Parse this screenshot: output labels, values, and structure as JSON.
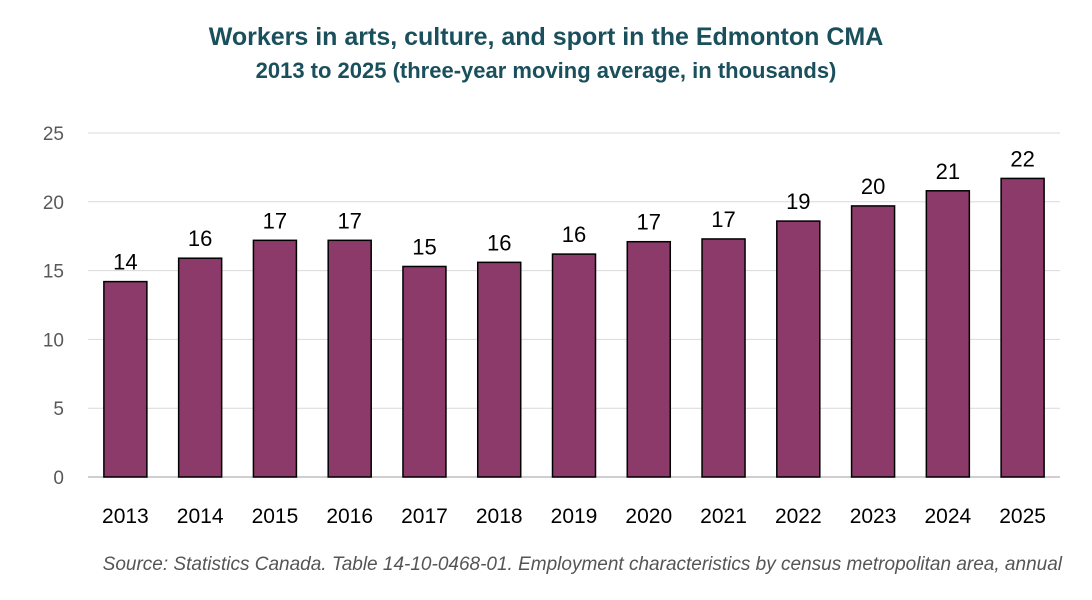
{
  "chart_data": {
    "type": "bar",
    "title": "Workers in arts, culture, and sport in the Edmonton CMA",
    "subtitle": "2013 to 2025 (three-year moving average,  in thousands)",
    "categories": [
      "2013",
      "2014",
      "2015",
      "2016",
      "2017",
      "2018",
      "2019",
      "2020",
      "2021",
      "2022",
      "2023",
      "2024",
      "2025"
    ],
    "values": [
      14.2,
      15.9,
      17.2,
      17.2,
      15.3,
      15.6,
      16.2,
      17.1,
      17.3,
      18.6,
      19.7,
      20.8,
      21.7
    ],
    "data_labels": [
      "14",
      "16",
      "17",
      "17",
      "15",
      "16",
      "16",
      "17",
      "17",
      "19",
      "20",
      "21",
      "22"
    ],
    "y_ticks": [
      "0",
      "5",
      "10",
      "15",
      "20",
      "25"
    ],
    "ylim": [
      0,
      25
    ],
    "grid": true,
    "legend": "none",
    "bar_color": "#8b3a69",
    "xlabel": "",
    "ylabel": ""
  },
  "source": "Source: Statistics Canada. Table 14-10-0468-01. Employment characteristics by census metropolitan area, annual"
}
